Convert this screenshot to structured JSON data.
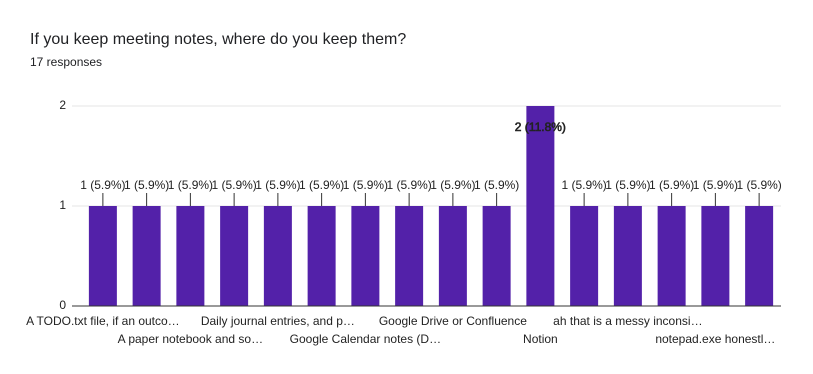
{
  "chart_data": {
    "type": "bar",
    "title": "If you keep meeting notes, where do you keep them?",
    "subtitle": "17 responses",
    "categories": [
      "A TODO.txt file, if an outco…",
      null,
      "A paper notebook and so…",
      null,
      "Daily journal entries, and p…",
      null,
      "Google Calendar notes (D…",
      null,
      "Google Drive or Confluence",
      null,
      "Notion",
      null,
      "ah that is a messy inconsi…",
      null,
      "notepad.exe honestl…",
      null
    ],
    "values": [
      1,
      1,
      1,
      1,
      1,
      1,
      1,
      1,
      1,
      1,
      2,
      1,
      1,
      1,
      1,
      1
    ],
    "value_labels": [
      "1 (5.9%)",
      "1 (5.9%)",
      "1 (5.9%)",
      "1 (5.9%)",
      "1 (5.9%)",
      "1 (5.9%)",
      "1 (5.9%)",
      "1 (5.9%)",
      "1 (5.9%)",
      "1 (5.9%)",
      "2 (11.8%)",
      "1 (5.9%)",
      "1 (5.9%)",
      "1 (5.9%)",
      "1 (5.9%)",
      "1 (5.9%)"
    ],
    "color": "#5321a9",
    "ylim": [
      0,
      2
    ],
    "yticks": [
      0,
      1,
      2
    ],
    "grid": true
  }
}
